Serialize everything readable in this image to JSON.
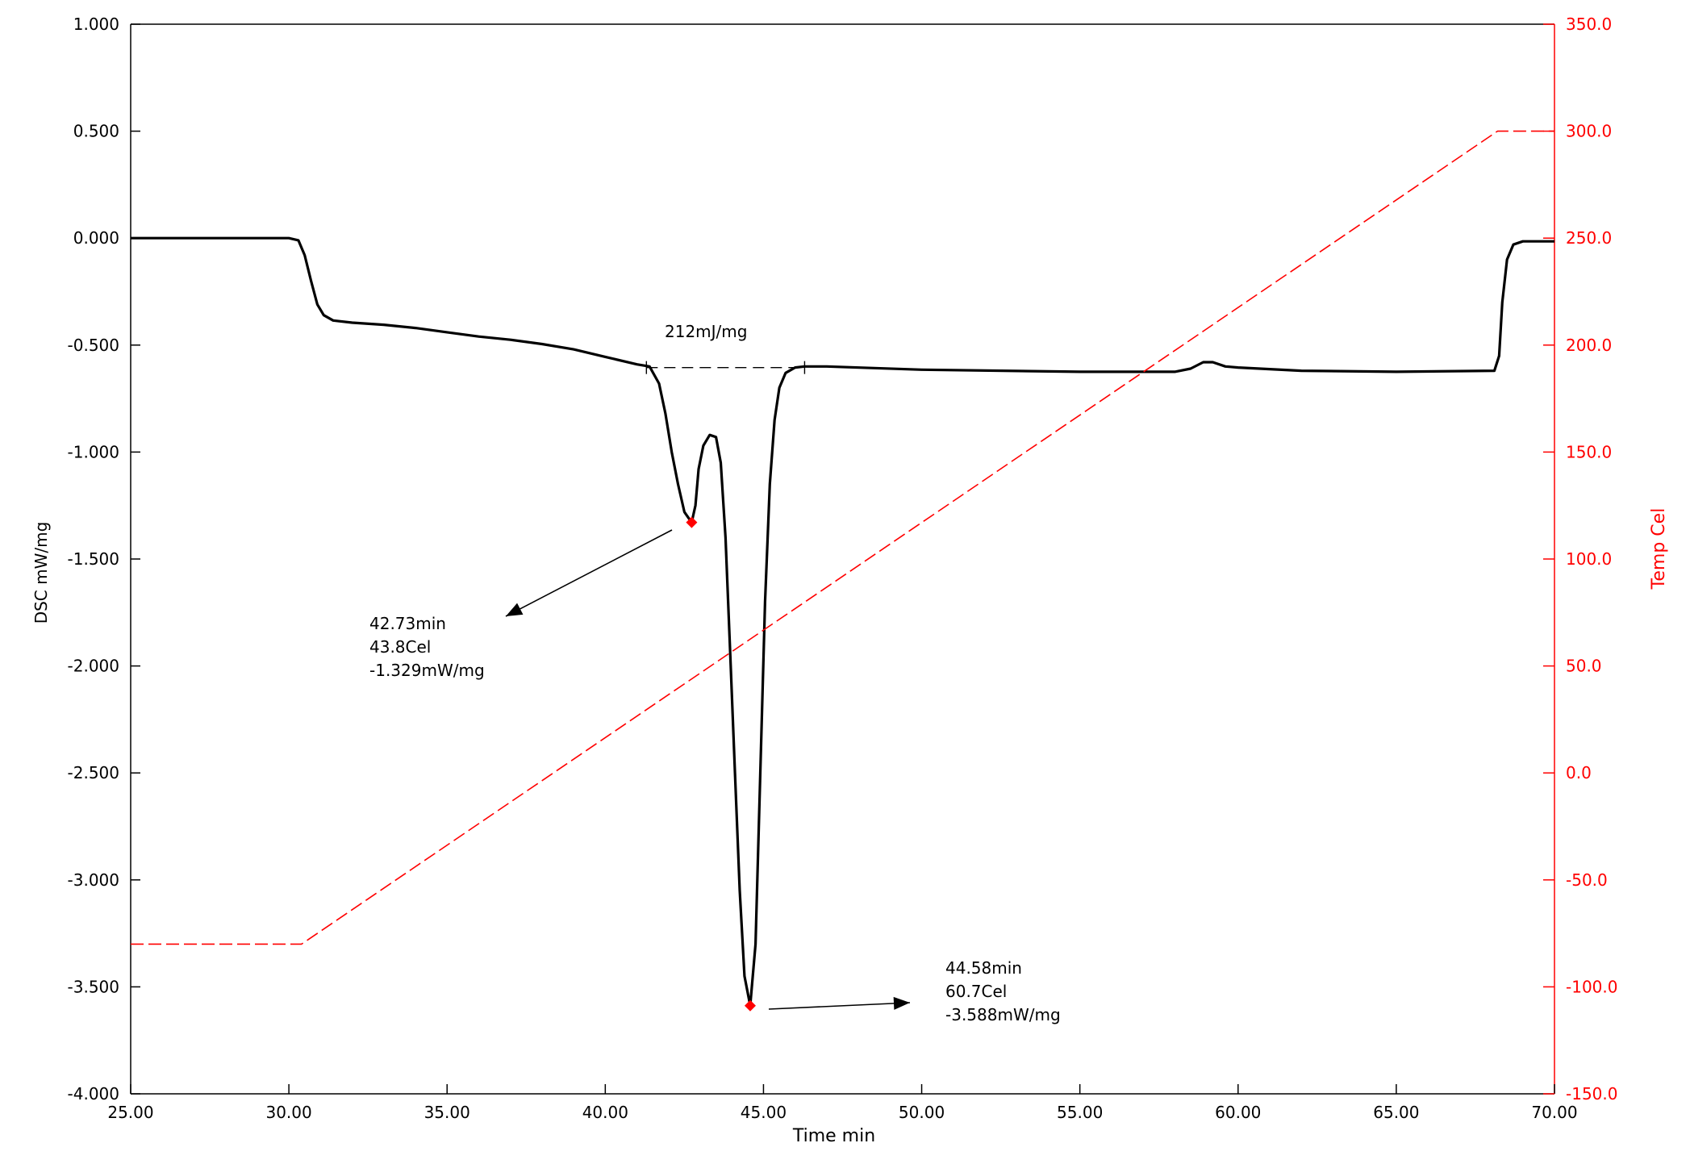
{
  "chart_data": {
    "type": "line",
    "xlabel": "Time min",
    "ylabel_left": "DSC mW/mg",
    "ylabel_right": "Temp Cel",
    "xlim": [
      25,
      70
    ],
    "ylim_left": [
      -4.0,
      1.0
    ],
    "ylim_right": [
      -150,
      350
    ],
    "x_ticks": [
      "25.00",
      "30.00",
      "35.00",
      "40.00",
      "45.00",
      "50.00",
      "55.00",
      "60.00",
      "65.00",
      "70.00"
    ],
    "y_left_ticks": [
      "1.000",
      "0.500",
      "0.000",
      "-0.500",
      "-1.000",
      "-1.500",
      "-2.000",
      "-2.500",
      "-3.000",
      "-3.500",
      "-4.000"
    ],
    "y_right_ticks": [
      "350.0",
      "300.0",
      "250.0",
      "200.0",
      "150.0",
      "100.0",
      "50.0",
      "0.0",
      "-50.0",
      "-100.0",
      "-150.0"
    ],
    "colors": {
      "dsc": "#000000",
      "temp": "#ff0000",
      "axis": "#000000",
      "right_axis": "#ff0000"
    },
    "series": [
      {
        "axis": "left",
        "color": "#000000",
        "points": [
          [
            25.0,
            0.0
          ],
          [
            30.0,
            0.0
          ],
          [
            30.3,
            -0.01
          ],
          [
            30.5,
            -0.08
          ],
          [
            30.7,
            -0.2
          ],
          [
            30.9,
            -0.31
          ],
          [
            31.1,
            -0.36
          ],
          [
            31.4,
            -0.385
          ],
          [
            32.0,
            -0.395
          ],
          [
            33.0,
            -0.405
          ],
          [
            34.0,
            -0.42
          ],
          [
            35.0,
            -0.44
          ],
          [
            36.0,
            -0.46
          ],
          [
            37.0,
            -0.475
          ],
          [
            38.0,
            -0.495
          ],
          [
            39.0,
            -0.52
          ],
          [
            40.0,
            -0.555
          ],
          [
            41.0,
            -0.59
          ],
          [
            41.4,
            -0.6
          ],
          [
            41.7,
            -0.68
          ],
          [
            41.9,
            -0.82
          ],
          [
            42.1,
            -1.0
          ],
          [
            42.3,
            -1.15
          ],
          [
            42.5,
            -1.28
          ],
          [
            42.73,
            -1.329
          ],
          [
            42.85,
            -1.25
          ],
          [
            42.95,
            -1.08
          ],
          [
            43.1,
            -0.97
          ],
          [
            43.3,
            -0.92
          ],
          [
            43.5,
            -0.93
          ],
          [
            43.65,
            -1.05
          ],
          [
            43.8,
            -1.4
          ],
          [
            43.95,
            -1.95
          ],
          [
            44.1,
            -2.5
          ],
          [
            44.25,
            -3.05
          ],
          [
            44.4,
            -3.45
          ],
          [
            44.58,
            -3.588
          ],
          [
            44.75,
            -3.3
          ],
          [
            44.9,
            -2.5
          ],
          [
            45.05,
            -1.7
          ],
          [
            45.2,
            -1.15
          ],
          [
            45.35,
            -0.85
          ],
          [
            45.5,
            -0.7
          ],
          [
            45.7,
            -0.63
          ],
          [
            46.0,
            -0.605
          ],
          [
            46.3,
            -0.6
          ],
          [
            47.0,
            -0.6
          ],
          [
            50.0,
            -0.615
          ],
          [
            55.0,
            -0.625
          ],
          [
            58.0,
            -0.625
          ],
          [
            58.5,
            -0.61
          ],
          [
            58.9,
            -0.58
          ],
          [
            59.2,
            -0.58
          ],
          [
            59.6,
            -0.6
          ],
          [
            60.0,
            -0.605
          ],
          [
            62.0,
            -0.62
          ],
          [
            65.0,
            -0.625
          ],
          [
            68.1,
            -0.62
          ],
          [
            68.25,
            -0.55
          ],
          [
            68.35,
            -0.3
          ],
          [
            68.5,
            -0.1
          ],
          [
            68.7,
            -0.03
          ],
          [
            69.0,
            -0.015
          ],
          [
            70.0,
            -0.015
          ]
        ]
      },
      {
        "axis": "right",
        "color": "#ff0000",
        "dashed": true,
        "points": [
          [
            25.0,
            -80.0
          ],
          [
            30.4,
            -80.0
          ],
          [
            68.2,
            300.0
          ],
          [
            70.0,
            300.0
          ]
        ]
      }
    ],
    "baseline": {
      "x": [
        41.3,
        46.3
      ],
      "y": -0.605
    },
    "markers": [
      {
        "x": 42.73,
        "y": -1.329,
        "color": "#ff0000"
      },
      {
        "x": 44.58,
        "y": -3.588,
        "color": "#ff0000"
      }
    ],
    "annotations": [
      {
        "lines": [
          "212mJ/mg"
        ]
      },
      {
        "lines": [
          "42.73min",
          "43.8Cel",
          "-1.329mW/mg"
        ]
      },
      {
        "lines": [
          "44.58min",
          "60.7Cel",
          "-3.588mW/mg"
        ]
      }
    ]
  }
}
